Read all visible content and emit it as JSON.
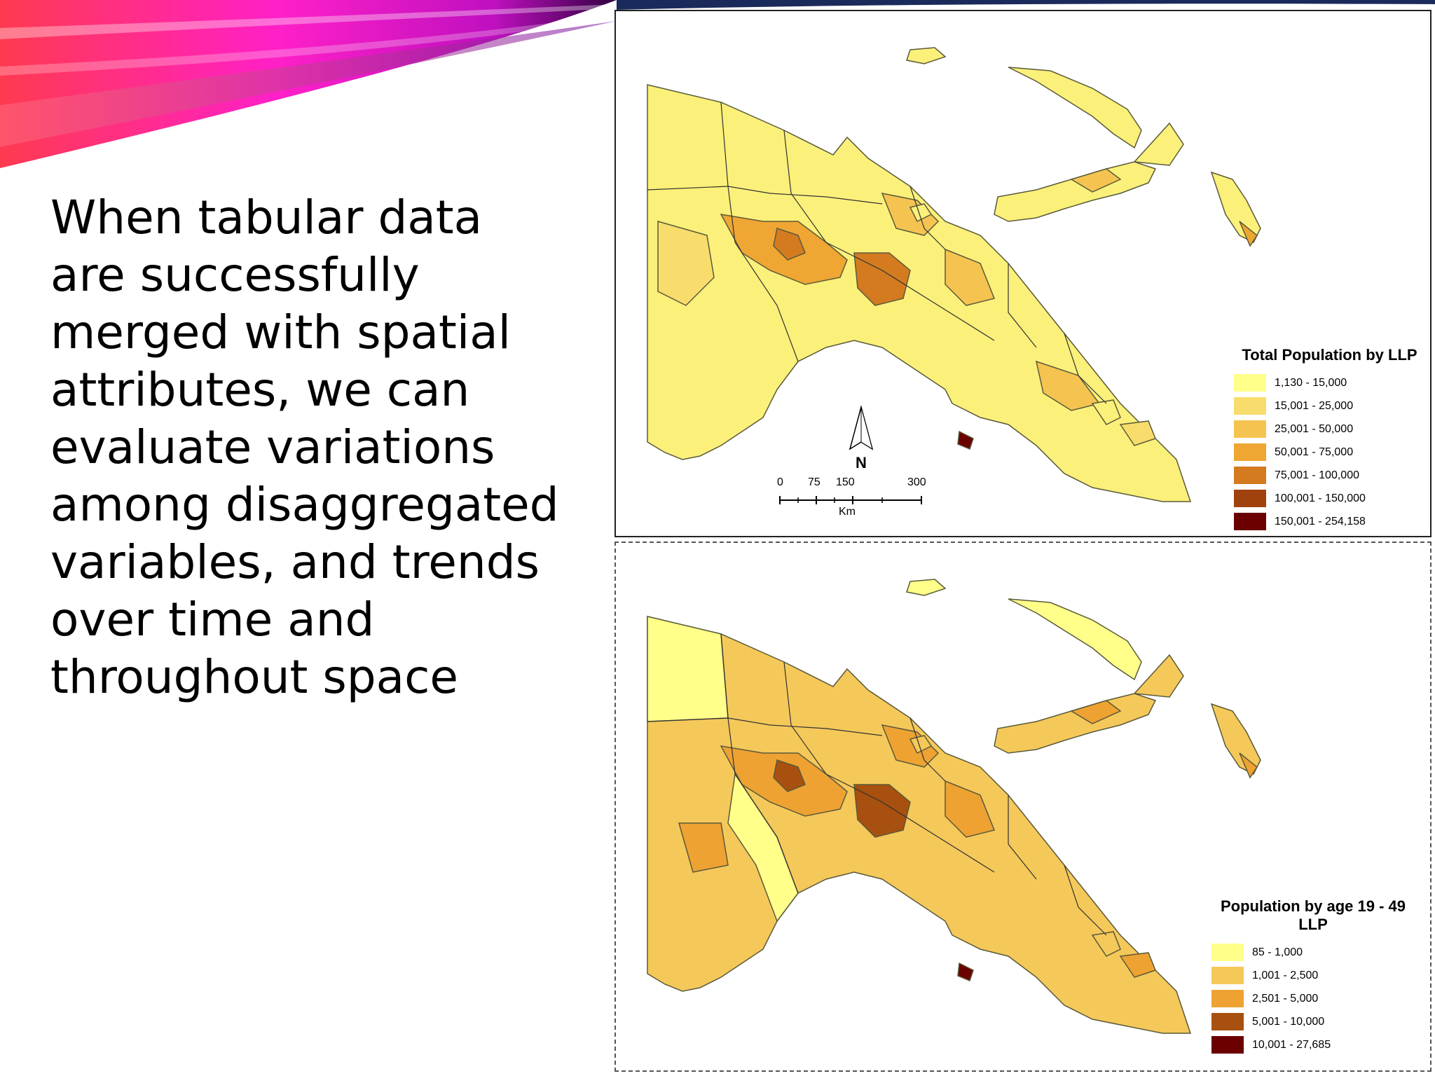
{
  "slide": {
    "body_text": "When tabular data\nare successfully\nmerged with spatial\nattributes, we can\nevaluate variations\namong disaggregated\nvariables, and trends\nover time and\nthroughout space"
  },
  "maps": [
    {
      "legend_title": "Total Population by LLP",
      "legend_items": [
        {
          "label": "1,130 - 15,000",
          "color": "#ffff8a"
        },
        {
          "label": "15,001 - 25,000",
          "color": "#f8dc6c"
        },
        {
          "label": "25,001 - 50,000",
          "color": "#f5c450"
        },
        {
          "label": "50,001 - 75,000",
          "color": "#f0a632"
        },
        {
          "label": "75,001 - 100,000",
          "color": "#d47b20"
        },
        {
          "label": "100,001 - 150,000",
          "color": "#a0420e"
        },
        {
          "label": "150,001 - 254,158",
          "color": "#6b0000"
        }
      ],
      "north_label": "N",
      "scale_ticks": [
        "0",
        "75",
        "150",
        "300"
      ],
      "scale_unit": "Km"
    },
    {
      "legend_title": "Population by age 19 - 49\nLLP",
      "legend_items": [
        {
          "label": "85 - 1,000",
          "color": "#ffff8a"
        },
        {
          "label": "1,001 - 2,500",
          "color": "#f5c85a"
        },
        {
          "label": "2,501 - 5,000",
          "color": "#eea232"
        },
        {
          "label": "5,001 - 10,000",
          "color": "#a8500f"
        },
        {
          "label": "10,001 - 27,685",
          "color": "#6b0000"
        }
      ]
    }
  ],
  "colors": {
    "swoosh_magenta": "#ff20c8",
    "swoosh_red": "#ff3355",
    "swoosh_dark": "#2a0040",
    "land_base": "#fbf07a",
    "coast": "#5a5a3a"
  }
}
